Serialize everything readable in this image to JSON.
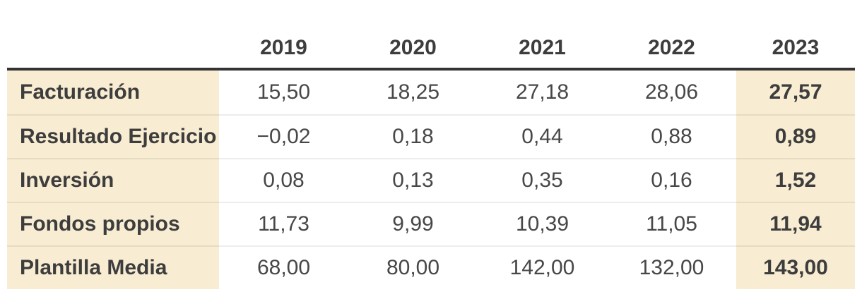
{
  "table": {
    "columns": [
      "",
      "2019",
      "2020",
      "2021",
      "2022",
      "2023"
    ],
    "rows": [
      {
        "label": "Facturación",
        "values": [
          "15,50",
          "18,25",
          "27,18",
          "28,06",
          "27,57"
        ]
      },
      {
        "label": "Resultado Ejercicio",
        "values": [
          "−0,02",
          "0,18",
          "0,44",
          "0,88",
          "0,89"
        ]
      },
      {
        "label": "Inversión",
        "values": [
          "0,08",
          "0,13",
          "0,35",
          "0,16",
          "1,52"
        ]
      },
      {
        "label": "Fondos propios",
        "values": [
          "11,73",
          "9,99",
          "10,39",
          "11,05",
          "11,94"
        ]
      },
      {
        "label": "Plantilla Media",
        "values": [
          "68,00",
          "80,00",
          "142,00",
          "132,00",
          "143,00"
        ]
      }
    ],
    "colors": {
      "highlight_bg": "#f8ecd2",
      "header_rule": "#333333",
      "bold_text": "#3d3d3d",
      "regular_text": "#474747",
      "row_separator": "rgba(0,0,0,0.07)",
      "background": "#ffffff"
    }
  },
  "chart_data": {
    "type": "table",
    "categories": [
      "2019",
      "2020",
      "2021",
      "2022",
      "2023"
    ],
    "series": [
      {
        "name": "Facturación",
        "values": [
          15.5,
          18.25,
          27.18,
          28.06,
          27.57
        ]
      },
      {
        "name": "Resultado Ejercicio",
        "values": [
          -0.02,
          0.18,
          0.44,
          0.88,
          0.89
        ]
      },
      {
        "name": "Inversión",
        "values": [
          0.08,
          0.13,
          0.35,
          0.16,
          1.52
        ]
      },
      {
        "name": "Fondos propios",
        "values": [
          11.73,
          9.99,
          10.39,
          11.05,
          11.94
        ]
      },
      {
        "name": "Plantilla Media",
        "values": [
          68.0,
          80.0,
          142.0,
          132.0,
          143.0
        ]
      }
    ],
    "title": "",
    "number_format": "decimal-comma (es-ES)",
    "highlighted_column": "2023",
    "layout_hints": {
      "first_column_highlighted": true,
      "last_column_highlighted": true,
      "last_column_bold": true,
      "thick_rule_below_header": true
    }
  }
}
